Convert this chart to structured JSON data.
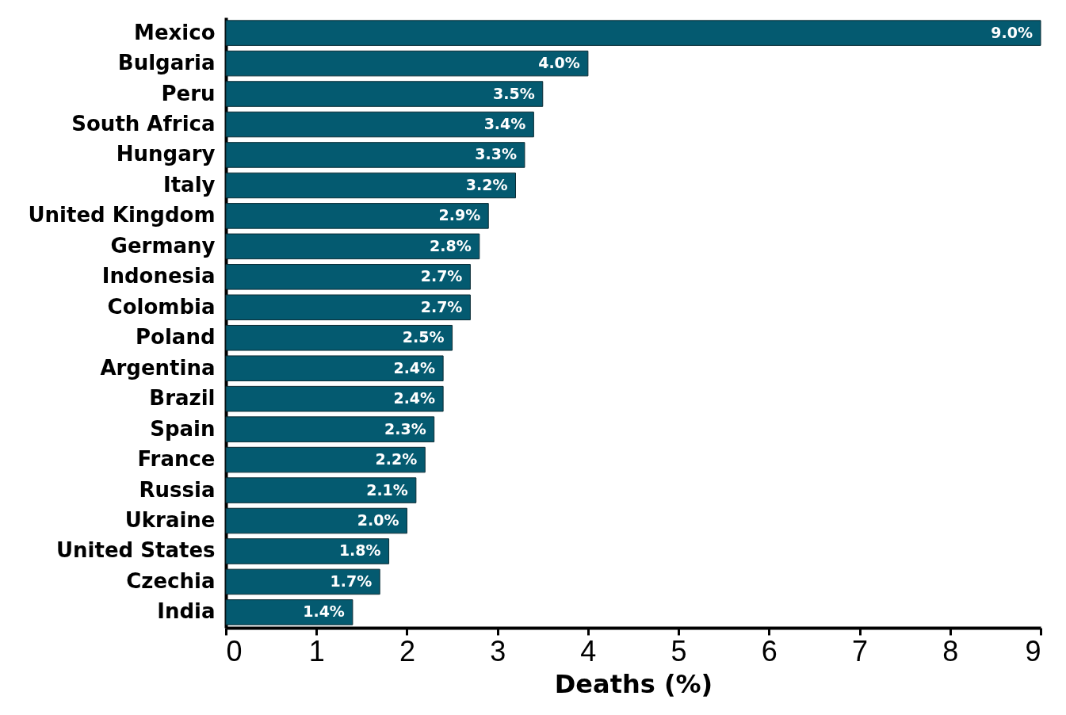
{
  "chart_data": {
    "type": "bar",
    "orientation": "horizontal",
    "xlabel": "Deaths (%)",
    "categories": [
      "Mexico",
      "Bulgaria",
      "Peru",
      "South Africa",
      "Hungary",
      "Italy",
      "United Kingdom",
      "Germany",
      "Indonesia",
      "Colombia",
      "Poland",
      "Argentina",
      "Brazil",
      "Spain",
      "France",
      "Russia",
      "Ukraine",
      "United States",
      "Czechia",
      "India"
    ],
    "values": [
      9.0,
      4.0,
      3.5,
      3.4,
      3.3,
      3.2,
      2.9,
      2.8,
      2.7,
      2.7,
      2.5,
      2.4,
      2.4,
      2.3,
      2.2,
      2.1,
      2.0,
      1.8,
      1.7,
      1.4
    ],
    "value_labels": [
      "9.0%",
      "4.0%",
      "3.5%",
      "3.4%",
      "3.3%",
      "3.2%",
      "2.9%",
      "2.8%",
      "2.7%",
      "2.7%",
      "2.5%",
      "2.4%",
      "2.4%",
      "2.3%",
      "2.2%",
      "2.1%",
      "2.0%",
      "1.8%",
      "1.7%",
      "1.4%"
    ],
    "color": "#045a70",
    "xlim": [
      0,
      9
    ],
    "xticks": [
      0,
      1,
      2,
      3,
      4,
      5,
      6,
      7,
      8,
      9
    ],
    "grid": false
  }
}
